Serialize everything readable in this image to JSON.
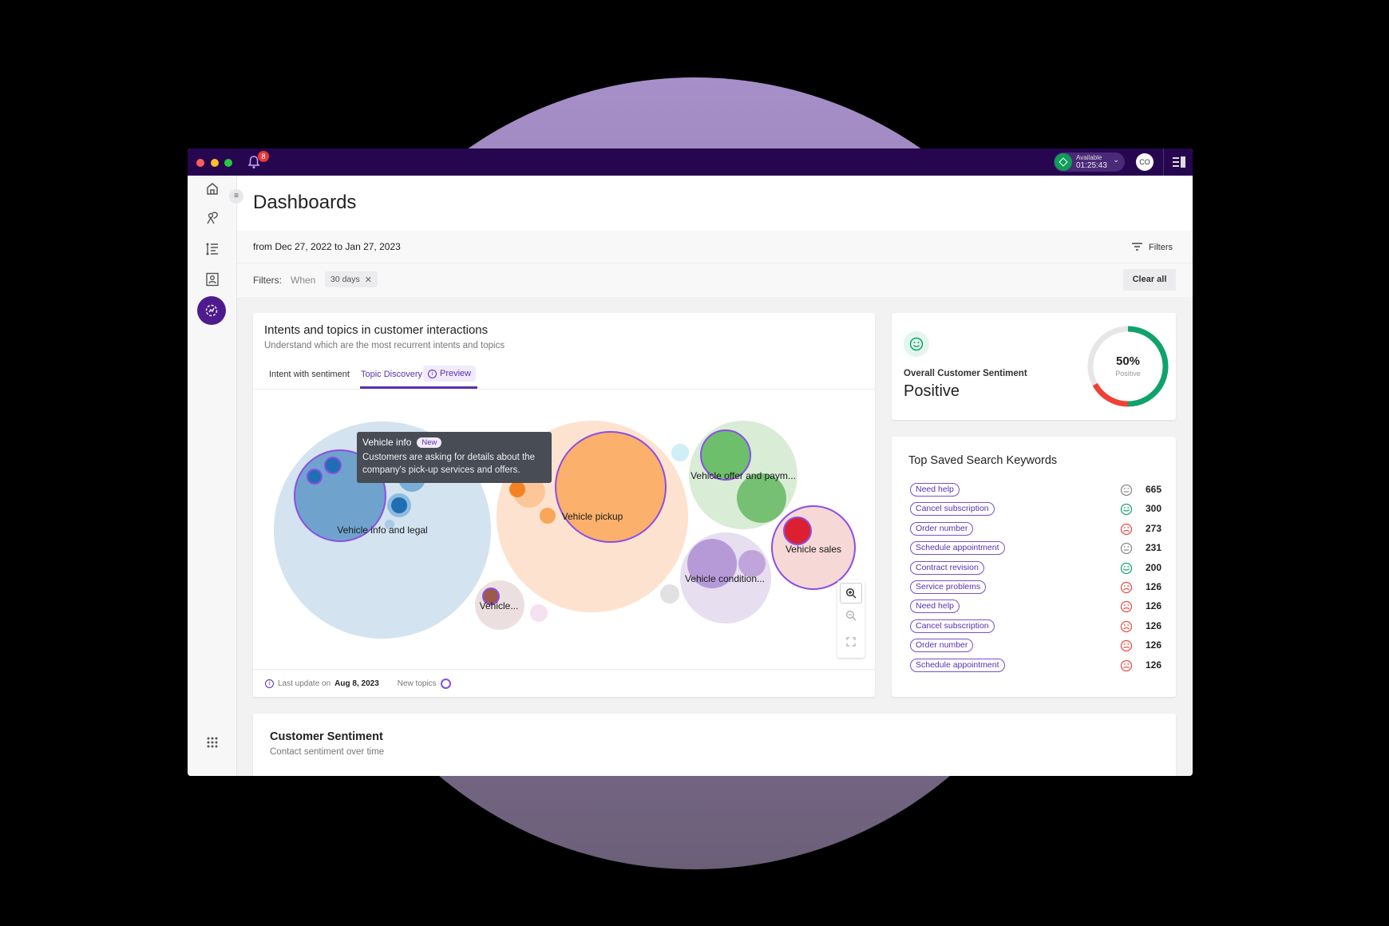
{
  "window": {
    "notification_count": "8",
    "status": {
      "label": "Available",
      "timer": "01:25:43",
      "color": "#0f9d58"
    },
    "avatar_initials": "CO",
    "accent_color": "#26064f"
  },
  "sidebar": {
    "items": [
      {
        "icon": "home-icon"
      },
      {
        "icon": "agent-icon"
      },
      {
        "icon": "list-icon"
      },
      {
        "icon": "contacts-icon"
      },
      {
        "icon": "analytics-icon",
        "active": true
      }
    ],
    "bottom_icon": "apps-grid-icon"
  },
  "header": {
    "title": "Dashboards",
    "date_range": "from Dec 27, 2022 to Jan 27, 2023",
    "filters_button": "Filters",
    "filters_label": "Filters:",
    "filter_when": "When",
    "filter_chip": "30 days",
    "clear_all": "Clear all"
  },
  "intents_card": {
    "title": "Intents and topics in customer interactions",
    "subtitle": "Understand which are the most recurrent intents and topics",
    "tabs": [
      {
        "label": "Intent with sentiment",
        "active": false
      },
      {
        "label": "Topic Discovery",
        "active": true
      }
    ],
    "preview_badge": "Preview",
    "tooltip": {
      "title": "Vehicle info",
      "badge": "New",
      "text": "Customers are asking for details about the company's pick-up services and offers."
    },
    "topics": [
      {
        "label": "Vehicle info and legal",
        "color": "#6fa3cd",
        "new": true
      },
      {
        "label": "Vehicle pickup",
        "color": "#fbb06b",
        "new": true
      },
      {
        "label": "Vehicle offer and paym...",
        "color": "#6ebf6c",
        "new": false
      },
      {
        "label": "Vehicle condition...",
        "color": "#b69ad8",
        "new": false
      },
      {
        "label": "Vehicle sales",
        "color": "#f6d8d6",
        "new": true
      },
      {
        "label": "Vehicle...",
        "color": "#9c5a4a",
        "new": true
      }
    ],
    "footer": {
      "last_update_label": "Last update on",
      "last_update_date": "Aug 8, 2023",
      "new_topics_label": "New topics"
    }
  },
  "sentiment_card": {
    "label": "Overall Customer Sentiment",
    "value": "Positive",
    "percent": "50%",
    "percent_label": "Positive",
    "positive_fraction": 0.5,
    "negative_fraction": 0.17,
    "colors": {
      "positive": "#0fa36b",
      "negative": "#ef4136",
      "neutral": "#e6e6e6"
    }
  },
  "keywords_card": {
    "title": "Top Saved Search Keywords",
    "rows": [
      {
        "keyword": "Need help",
        "sentiment": "neutral",
        "count": "665"
      },
      {
        "keyword": "Cancel subscription",
        "sentiment": "positive",
        "count": "300"
      },
      {
        "keyword": "Order number",
        "sentiment": "negative",
        "count": "273"
      },
      {
        "keyword": "Schedule appointment",
        "sentiment": "neutral",
        "count": "231"
      },
      {
        "keyword": "Contract revision",
        "sentiment": "positive",
        "count": "200"
      },
      {
        "keyword": "Service problems",
        "sentiment": "negative",
        "count": "126"
      },
      {
        "keyword": "Need help",
        "sentiment": "negative",
        "count": "126"
      },
      {
        "keyword": "Cancel subscription",
        "sentiment": "negative",
        "count": "126"
      },
      {
        "keyword": "Order number",
        "sentiment": "negative",
        "count": "126"
      },
      {
        "keyword": "Schedule appointment",
        "sentiment": "negative",
        "count": "126"
      }
    ]
  },
  "customer_sentiment_card": {
    "title": "Customer Sentiment",
    "subtitle": "Contact sentiment over time"
  }
}
